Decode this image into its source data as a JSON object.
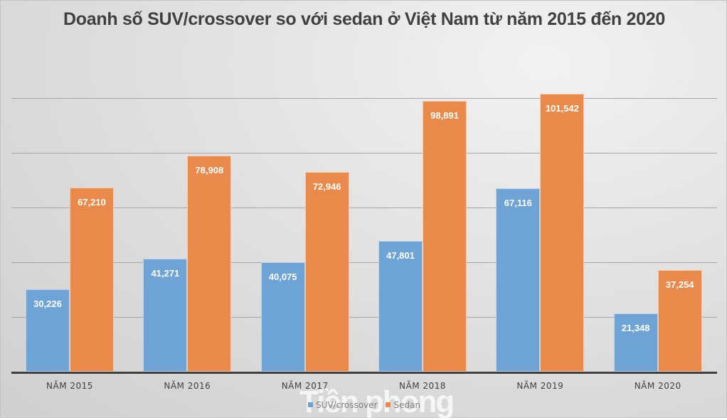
{
  "chart_data": {
    "type": "bar",
    "title": "Doanh số SUV/crossover so với sedan ở Việt Nam từ năm 2015 đến 2020",
    "categories": [
      "NĂM 2015",
      "NĂM 2016",
      "NĂM 2017",
      "NĂM 2018",
      "NĂM 2019",
      "NĂM 2020"
    ],
    "series": [
      {
        "name": "SUV/crossover",
        "color": "#6ea3d6",
        "values": [
          30226,
          41271,
          40075,
          47801,
          67116,
          21348
        ],
        "labels": [
          "30,226",
          "41,271",
          "40,075",
          "47,801",
          "67,116",
          "21,348"
        ]
      },
      {
        "name": "Sedan",
        "color": "#ea8a4a",
        "values": [
          67210,
          78908,
          72946,
          98891,
          101542,
          37254
        ],
        "labels": [
          "67,210",
          "78,908",
          "72,946",
          "98,891",
          "101,542",
          "37,254"
        ]
      }
    ],
    "xlabel": "",
    "ylabel": "",
    "ylim": [
      0,
      110000
    ],
    "gridlines": [
      20000,
      40000,
      60000,
      80000,
      100000
    ],
    "grid": true,
    "y_axis_labels_shown": false,
    "legend_position": "bottom"
  },
  "watermark": "Tiền phong"
}
